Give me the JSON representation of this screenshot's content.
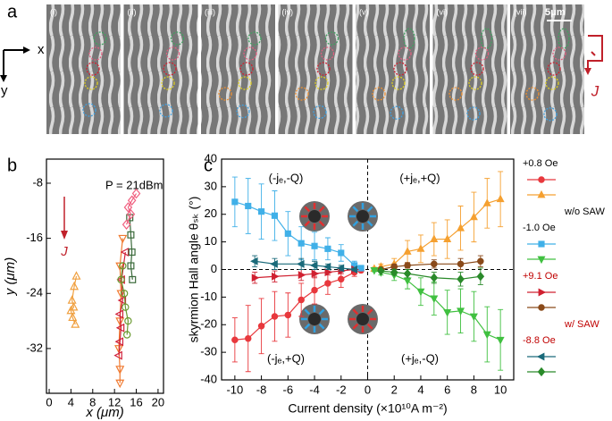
{
  "panel_a": {
    "label": "a",
    "frames": [
      "(i)",
      "(ii)",
      "(iii)",
      "(iv)",
      "(v)",
      "(vi)",
      "(vii)"
    ],
    "scale": "5μm",
    "axes": [
      "x",
      "y"
    ],
    "current": "J"
  },
  "chart_data": [
    {
      "type": "scatter",
      "panel_label": "b",
      "annotation": "P = 21dBm",
      "current": "J",
      "xlabel": "x (μm)",
      "ylabel": "y (μm)",
      "xlim": [
        -0.5,
        21
      ],
      "xticks": [
        0,
        4,
        8,
        12,
        16,
        20
      ],
      "ylim": [
        -38.5,
        -4.5
      ],
      "yticks": [
        -8,
        -16,
        -24,
        -32
      ],
      "series": [
        {
          "marker": "tri-up",
          "color": "#f0a040",
          "x": [
            5.0,
            4.6,
            4.2,
            4.5,
            4.0,
            4.3,
            4.8
          ],
          "values": [
            -21.5,
            -23,
            -25,
            -26,
            -26.5,
            -27.5,
            -28.5
          ]
        },
        {
          "marker": "tri-down",
          "color": "#f07a30",
          "x": [
            13,
            13,
            12.8,
            13,
            13.2,
            13,
            13.5
          ],
          "values": [
            -37,
            -35,
            -32,
            -28,
            -24,
            -20,
            -16
          ]
        },
        {
          "marker": "tri-left",
          "color": "#d0203a",
          "x": [
            12.8,
            13,
            13.2,
            13,
            13.5,
            13.3,
            14
          ],
          "values": [
            -33,
            -31,
            -29,
            -27,
            -25,
            -22,
            -18
          ]
        },
        {
          "marker": "circle",
          "color": "#6a9a30",
          "x": [
            13.5,
            13.2,
            13.8,
            14,
            14.5,
            14.3
          ],
          "values": [
            -20,
            -22,
            -24,
            -26,
            -28,
            -30
          ]
        },
        {
          "marker": "square",
          "color": "#3a6a3a",
          "x": [
            14.8,
            15,
            15.2,
            15,
            15.3
          ],
          "values": [
            -13,
            -15.5,
            -18,
            -20,
            -22
          ]
        },
        {
          "marker": "diamond",
          "color": "#f06080",
          "x": [
            16,
            15.2,
            14.5,
            15,
            14.2
          ],
          "values": [
            -9.5,
            -10.5,
            -11.5,
            -12.5,
            -14
          ]
        }
      ]
    },
    {
      "type": "line",
      "panel_label": "c",
      "xlabel": "Current density (×10¹⁰A m⁻²)",
      "ylabel": "skyrmion Hall angle θₛₖ (°)",
      "xlim": [
        -11,
        11
      ],
      "xticks": [
        -10,
        -8,
        -6,
        -4,
        -2,
        0,
        2,
        4,
        6,
        8,
        10
      ],
      "ylim": [
        -40,
        40
      ],
      "yticks": [
        -40,
        -30,
        -20,
        -10,
        0,
        10,
        20,
        30,
        40
      ],
      "annotations": [
        "(-jₑ,-Q)",
        "(+jₑ,+Q)",
        "(-jₑ,+Q)",
        "(+jₑ,-Q)"
      ],
      "groups": [
        {
          "label": "w/o SAW",
          "color": "#000000",
          "fields": [
            {
              "name": "+0.8 Oe",
              "series": [
                {
                  "marker": "circle",
                  "color": "#e8383d",
                  "x": [
                    -10,
                    -9,
                    -8,
                    -7,
                    -6,
                    -5,
                    -4,
                    -3,
                    -2,
                    -1,
                    -0.5
                  ],
                  "values": [
                    -25.5,
                    -25,
                    -20.5,
                    -17,
                    -16.5,
                    -11,
                    -7.5,
                    -5,
                    -3.5,
                    -1,
                    -0.3
                  ],
                  "errors": [
                    8,
                    12,
                    10,
                    9,
                    8,
                    6,
                    5,
                    4,
                    3,
                    1.5,
                    0.5
                  ]
                },
                {
                  "marker": "tri-up",
                  "color": "#f5a030",
                  "x": [
                    0.5,
                    1,
                    2,
                    3,
                    4,
                    5,
                    6,
                    7,
                    8,
                    9,
                    10
                  ],
                  "values": [
                    0.3,
                    1,
                    2,
                    6.5,
                    7.5,
                    11,
                    11,
                    15,
                    19,
                    24,
                    25.5
                  ],
                  "errors": [
                    0.5,
                    1,
                    2,
                    4,
                    5,
                    6,
                    7,
                    8,
                    9,
                    9,
                    10
                  ]
                }
              ]
            },
            {
              "name": "-1.0 Oe",
              "series": [
                {
                  "marker": "square",
                  "color": "#40b0e8",
                  "x": [
                    -10,
                    -9,
                    -8,
                    -7,
                    -6,
                    -5,
                    -4,
                    -3,
                    -2,
                    -1,
                    -0.5
                  ],
                  "values": [
                    24.5,
                    23,
                    21,
                    19.5,
                    13,
                    9.5,
                    8.5,
                    7.5,
                    6,
                    1.5,
                    0.5
                  ],
                  "errors": [
                    9,
                    10,
                    10,
                    9,
                    8,
                    6,
                    5,
                    4,
                    3,
                    1.5,
                    0.5
                  ]
                },
                {
                  "marker": "tri-down",
                  "color": "#40c040",
                  "x": [
                    0.5,
                    1,
                    2,
                    3,
                    4,
                    5,
                    6,
                    7,
                    8,
                    9,
                    10
                  ],
                  "values": [
                    -0.3,
                    -1,
                    -2,
                    -4,
                    -8,
                    -10.5,
                    -15.5,
                    -15,
                    -17,
                    -23.5,
                    -25.5
                  ],
                  "errors": [
                    0.5,
                    1,
                    2,
                    3,
                    5,
                    6,
                    8,
                    8,
                    9,
                    10,
                    11
                  ]
                }
              ]
            }
          ]
        },
        {
          "label": "w/ SAW",
          "color": "#c00000",
          "fields": [
            {
              "name": "+9.1 Oe",
              "series": [
                {
                  "marker": "tri-right",
                  "color": "#d02030",
                  "x": [
                    -8.5,
                    -7,
                    -5,
                    -4,
                    -3,
                    -2,
                    -1
                  ],
                  "values": [
                    -3,
                    -2.5,
                    -2,
                    -1.5,
                    -1,
                    -0.5,
                    0
                  ],
                  "errors": [
                    2,
                    2,
                    2,
                    1.5,
                    1,
                    1,
                    0.5
                  ]
                },
                {
                  "marker": "circle",
                  "color": "#8a4a1a",
                  "x": [
                    1,
                    2,
                    3,
                    5,
                    7,
                    8.5
                  ],
                  "values": [
                    0,
                    1,
                    1.5,
                    2,
                    2,
                    3
                  ],
                  "errors": [
                    0.5,
                    1,
                    1,
                    1.5,
                    2,
                    2
                  ]
                }
              ]
            },
            {
              "name": "-8.8 Oe",
              "series": [
                {
                  "marker": "tri-left",
                  "color": "#1a6a7a",
                  "x": [
                    -8.5,
                    -7,
                    -5,
                    -4,
                    -3,
                    -2,
                    -1
                  ],
                  "values": [
                    3,
                    2,
                    2,
                    1.5,
                    1,
                    0.5,
                    0
                  ],
                  "errors": [
                    2,
                    2,
                    2,
                    1.5,
                    1,
                    1,
                    0.5
                  ]
                },
                {
                  "marker": "diamond",
                  "color": "#2a8a2a",
                  "x": [
                    1,
                    2,
                    3,
                    5,
                    7,
                    8.5
                  ],
                  "values": [
                    -0.5,
                    -1,
                    -1.5,
                    -3,
                    -3.5,
                    -2.5
                  ],
                  "errors": [
                    0.5,
                    1,
                    1.5,
                    2,
                    2.5,
                    3
                  ]
                }
              ]
            }
          ]
        }
      ]
    }
  ]
}
